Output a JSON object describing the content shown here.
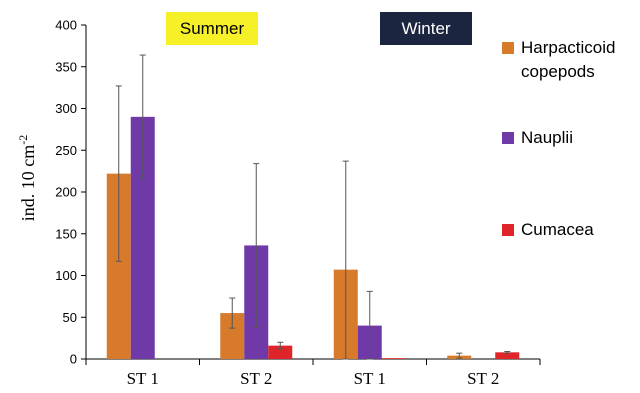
{
  "chart_data": {
    "type": "bar",
    "categories": [
      "ST 1",
      "ST 2",
      "ST 1",
      "ST 2"
    ],
    "group_labels": [
      {
        "label": "Summer",
        "categories": [
          0,
          1
        ],
        "bg": "#f5f028",
        "fg": "#000000"
      },
      {
        "label": "Winter",
        "categories": [
          2,
          3
        ],
        "bg": "#1c2540",
        "fg": "#ffffff"
      }
    ],
    "ylabel_base": "ind. 10 cm",
    "ylabel_sup": "-2",
    "ylim": [
      0,
      400
    ],
    "yticks": [
      0,
      50,
      100,
      150,
      200,
      250,
      300,
      350,
      400
    ],
    "grid": false,
    "legend_position": "right",
    "series": [
      {
        "name": "Harpacticoid copepods",
        "name_lines": [
          "Harpacticoid",
          "copepods"
        ],
        "color": "#d87a2b",
        "values": [
          222,
          55,
          107,
          4
        ],
        "errors": [
          105,
          18,
          130,
          3
        ]
      },
      {
        "name": "Nauplii",
        "name_lines": [
          "Nauplii"
        ],
        "color": "#6f3aa8",
        "values": [
          290,
          136,
          40,
          0
        ],
        "errors": [
          74,
          98,
          41,
          0
        ]
      },
      {
        "name": "Cumacea",
        "name_lines": [
          "Cumacea"
        ],
        "color": "#e0252a",
        "values": [
          0,
          16,
          1,
          8
        ],
        "errors": [
          0,
          4,
          0,
          1
        ]
      }
    ]
  }
}
